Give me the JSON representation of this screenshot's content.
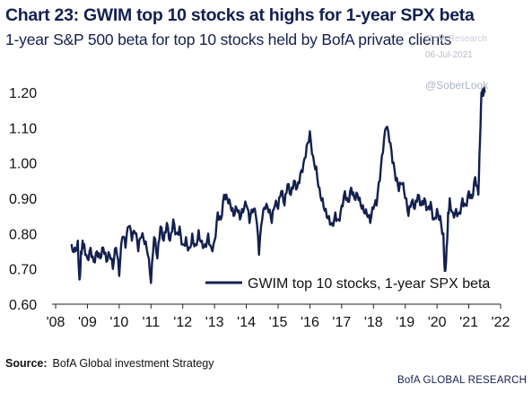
{
  "header": {
    "title": "Chart 23: GWIM top 10 stocks at highs for 1-year SPX beta",
    "subtitle": "1-year S&P 500 beta for top 10 stocks held by BofA private clients"
  },
  "watermark": {
    "site": "BofA Research",
    "date": "06-Jul-2021",
    "handle": "@SoberLook"
  },
  "footer": {
    "source_label": "Source:",
    "source_text": "BofA Global investment Strategy",
    "brand": "BofA GLOBAL RESEARCH"
  },
  "colors": {
    "line": "#13204f",
    "text": "#13204f"
  },
  "chart_data": {
    "type": "line",
    "title": "Chart 23: GWIM top 10 stocks at highs for 1-year SPX beta",
    "subtitle": "1-year S&P 500 beta for top 10 stocks held by BofA private clients",
    "xlabel": "",
    "ylabel": "",
    "ylim": [
      0.6,
      1.2
    ],
    "xlim": [
      2008.0,
      2022.0
    ],
    "y_ticks": [
      "1.20",
      "1.10",
      "1.00",
      "0.90",
      "0.80",
      "0.70",
      "0.60"
    ],
    "x_ticks": [
      "'08",
      "'09",
      "'10",
      "'11",
      "'12",
      "'13",
      "'14",
      "'15",
      "'16",
      "'17",
      "'18",
      "'19",
      "'20",
      "'21",
      "'22"
    ],
    "grid": false,
    "legend": "bottom-right",
    "series": [
      {
        "name": "GWIM top 10 stocks, 1-year SPX beta",
        "x": [
          2008.5,
          2008.6,
          2008.7,
          2008.75,
          2008.8,
          2008.85,
          2008.9,
          2009.0,
          2009.1,
          2009.2,
          2009.3,
          2009.4,
          2009.5,
          2009.6,
          2009.7,
          2009.8,
          2009.9,
          2010.0,
          2010.1,
          2010.2,
          2010.3,
          2010.4,
          2010.5,
          2010.6,
          2010.7,
          2010.8,
          2010.9,
          2011.0,
          2011.1,
          2011.2,
          2011.3,
          2011.4,
          2011.5,
          2011.6,
          2011.7,
          2011.8,
          2011.9,
          2012.0,
          2012.1,
          2012.2,
          2012.3,
          2012.4,
          2012.5,
          2012.6,
          2012.7,
          2012.8,
          2012.9,
          2013.0,
          2013.1,
          2013.2,
          2013.3,
          2013.4,
          2013.5,
          2013.6,
          2013.7,
          2013.8,
          2013.9,
          2014.0,
          2014.1,
          2014.2,
          2014.3,
          2014.4,
          2014.5,
          2014.6,
          2014.7,
          2014.8,
          2014.9,
          2015.0,
          2015.1,
          2015.2,
          2015.3,
          2015.4,
          2015.5,
          2015.6,
          2015.7,
          2015.8,
          2015.9,
          2016.0,
          2016.1,
          2016.2,
          2016.3,
          2016.4,
          2016.5,
          2016.6,
          2016.7,
          2016.8,
          2016.9,
          2017.0,
          2017.1,
          2017.2,
          2017.3,
          2017.4,
          2017.5,
          2017.6,
          2017.7,
          2017.8,
          2017.9,
          2018.0,
          2018.1,
          2018.2,
          2018.3,
          2018.4,
          2018.5,
          2018.6,
          2018.7,
          2018.8,
          2018.9,
          2019.0,
          2019.1,
          2019.2,
          2019.3,
          2019.4,
          2019.5,
          2019.6,
          2019.7,
          2019.8,
          2019.9,
          2020.0,
          2020.1,
          2020.2,
          2020.25,
          2020.3,
          2020.35,
          2020.4,
          2020.5,
          2020.6,
          2020.7,
          2020.8,
          2020.9,
          2021.0,
          2021.1,
          2021.2,
          2021.3,
          2021.35,
          2021.4,
          2021.45,
          2021.5
        ],
        "values": [
          0.77,
          0.76,
          0.78,
          0.67,
          0.75,
          0.78,
          0.77,
          0.73,
          0.76,
          0.72,
          0.75,
          0.73,
          0.76,
          0.72,
          0.74,
          0.7,
          0.76,
          0.68,
          0.79,
          0.76,
          0.82,
          0.78,
          0.8,
          0.75,
          0.79,
          0.77,
          0.74,
          0.66,
          0.79,
          0.73,
          0.82,
          0.78,
          0.83,
          0.78,
          0.84,
          0.8,
          0.82,
          0.77,
          0.79,
          0.76,
          0.8,
          0.77,
          0.81,
          0.78,
          0.77,
          0.8,
          0.76,
          0.78,
          0.86,
          0.84,
          0.91,
          0.9,
          0.88,
          0.85,
          0.87,
          0.84,
          0.86,
          0.88,
          0.83,
          0.86,
          0.85,
          0.74,
          0.84,
          0.87,
          0.86,
          0.83,
          0.88,
          0.87,
          0.92,
          0.88,
          0.94,
          0.91,
          0.95,
          0.93,
          0.97,
          1.0,
          1.05,
          1.09,
          1.02,
          0.99,
          0.93,
          0.9,
          0.87,
          0.85,
          0.83,
          0.86,
          0.84,
          0.88,
          0.92,
          0.89,
          0.93,
          0.9,
          0.91,
          0.88,
          0.86,
          0.85,
          0.83,
          0.87,
          0.88,
          0.95,
          1.03,
          1.1,
          1.06,
          1.0,
          0.95,
          0.92,
          0.94,
          0.9,
          0.85,
          0.89,
          0.87,
          0.91,
          0.88,
          0.9,
          0.87,
          0.89,
          0.84,
          0.87,
          0.85,
          0.8,
          0.69,
          0.76,
          0.86,
          0.9,
          0.86,
          0.87,
          0.86,
          0.9,
          0.88,
          0.92,
          0.9,
          0.96,
          0.91,
          1.06,
          1.2,
          1.19,
          1.2
        ]
      }
    ]
  }
}
